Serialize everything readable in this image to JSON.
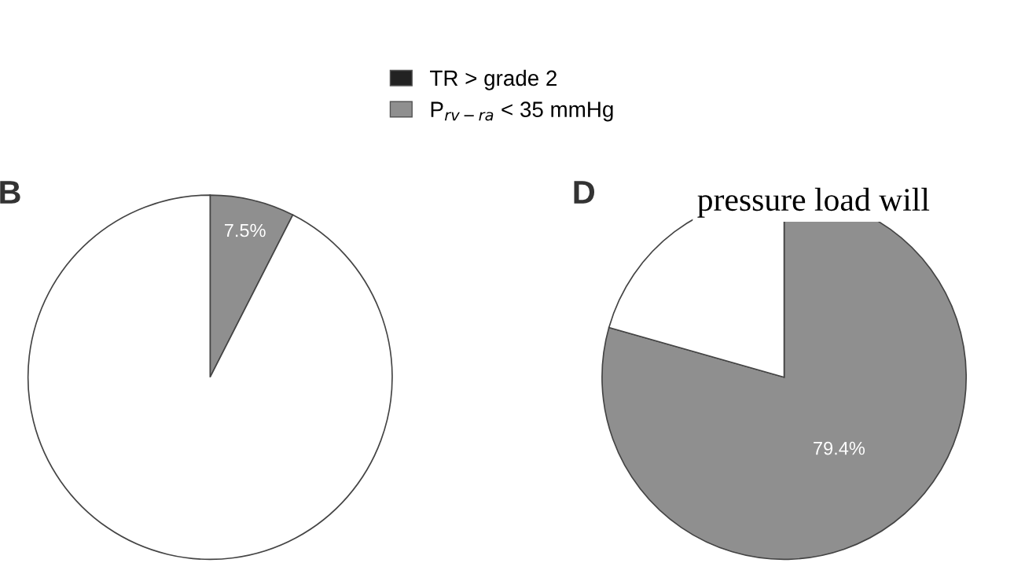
{
  "chart_data": [
    {
      "type": "pie",
      "title": "B",
      "categories": [
        "TR > grade 2",
        "P$_{rv−ra}$ < 35 mmHg",
        null
      ],
      "values": [
        0,
        7.5,
        92.5
      ],
      "colors": [
        "#222222",
        "#8f8f8f",
        "#ffffff"
      ],
      "value_labels": [
        null,
        "7.5%",
        null
      ],
      "legend": "top"
    },
    {
      "type": "pie",
      "title": "D",
      "categories": [
        null,
        null,
        null
      ],
      "values": [
        0,
        79.4,
        20.6
      ],
      "colors": [
        "#222222",
        "#8f8f8f",
        "#ffffff"
      ],
      "value_labels": [
        null,
        "79.4%",
        null
      ],
      "annotations": [
        "pressure load will"
      ]
    }
  ]
}
